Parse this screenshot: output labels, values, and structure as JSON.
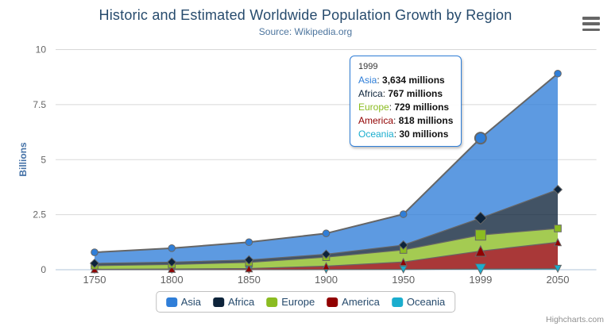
{
  "title": "Historic and Estimated Worldwide Population Growth by Region",
  "subtitle": "Source: Wikipedia.org",
  "credits": "Highcharts.com",
  "y_axis": {
    "title": "Billions",
    "ticks": [
      {
        "label": "0",
        "value": 0
      },
      {
        "label": "2.5",
        "value": 2500
      },
      {
        "label": "5",
        "value": 5000
      },
      {
        "label": "7.5",
        "value": 7500
      },
      {
        "label": "10",
        "value": 10000
      }
    ]
  },
  "x_axis": {
    "categories": [
      "1750",
      "1800",
      "1850",
      "1900",
      "1950",
      "1999",
      "2050"
    ]
  },
  "chart_data": {
    "type": "area",
    "stacking": "normal",
    "units": "millions",
    "title": "Historic and Estimated Worldwide Population Growth by Region",
    "xlabel": "",
    "ylabel": "Billions",
    "ylim": [
      0,
      10000
    ],
    "grid": true,
    "legend_position": "bottom",
    "line_color": "#666666",
    "fill_opacity": 0.78,
    "hover_index": 5,
    "categories": [
      "1750",
      "1800",
      "1850",
      "1900",
      "1950",
      "1999",
      "2050"
    ],
    "series": [
      {
        "name": "Asia",
        "color": "#2f7ed8",
        "marker": "circle",
        "values": [
          502,
          635,
          809,
          947,
          1402,
          3634,
          5268
        ]
      },
      {
        "name": "Africa",
        "color": "#0d233a",
        "marker": "diamond",
        "values": [
          106,
          107,
          111,
          133,
          221,
          767,
          1766
        ]
      },
      {
        "name": "Europe",
        "color": "#8bbc21",
        "marker": "square",
        "values": [
          163,
          203,
          276,
          408,
          547,
          729,
          628
        ]
      },
      {
        "name": "America",
        "color": "#910000",
        "marker": "triangle",
        "values": [
          18,
          31,
          54,
          156,
          339,
          818,
          1201
        ]
      },
      {
        "name": "Oceania",
        "color": "#1aadce",
        "marker": "triangle-down",
        "values": [
          2,
          2,
          2,
          6,
          13,
          30,
          46
        ]
      }
    ]
  },
  "tooltip": {
    "header": "1999",
    "rows": [
      {
        "name": "Asia",
        "color": "#2f7ed8",
        "value": "3,634 millions"
      },
      {
        "name": "Africa",
        "color": "#0d233a",
        "value": "767 millions"
      },
      {
        "name": "Europe",
        "color": "#8bbc21",
        "value": "729 millions"
      },
      {
        "name": "America",
        "color": "#910000",
        "value": "818 millions"
      },
      {
        "name": "Oceania",
        "color": "#1aadce",
        "value": "30 millions"
      }
    ]
  },
  "legend": {
    "items": [
      {
        "label": "Asia",
        "color": "#2f7ed8"
      },
      {
        "label": "Africa",
        "color": "#0d233a"
      },
      {
        "label": "Europe",
        "color": "#8bbc21"
      },
      {
        "label": "America",
        "color": "#910000"
      },
      {
        "label": "Oceania",
        "color": "#1aadce"
      }
    ]
  },
  "colors": {
    "title_text": "#274b6d",
    "subtitle_text": "#4d759e",
    "axis_title": "#4572A7",
    "grid_line": "#d8d8d8",
    "axis_line": "#c0d0e0",
    "label_text": "#606060",
    "tooltip_border": "#2f7ed8"
  }
}
